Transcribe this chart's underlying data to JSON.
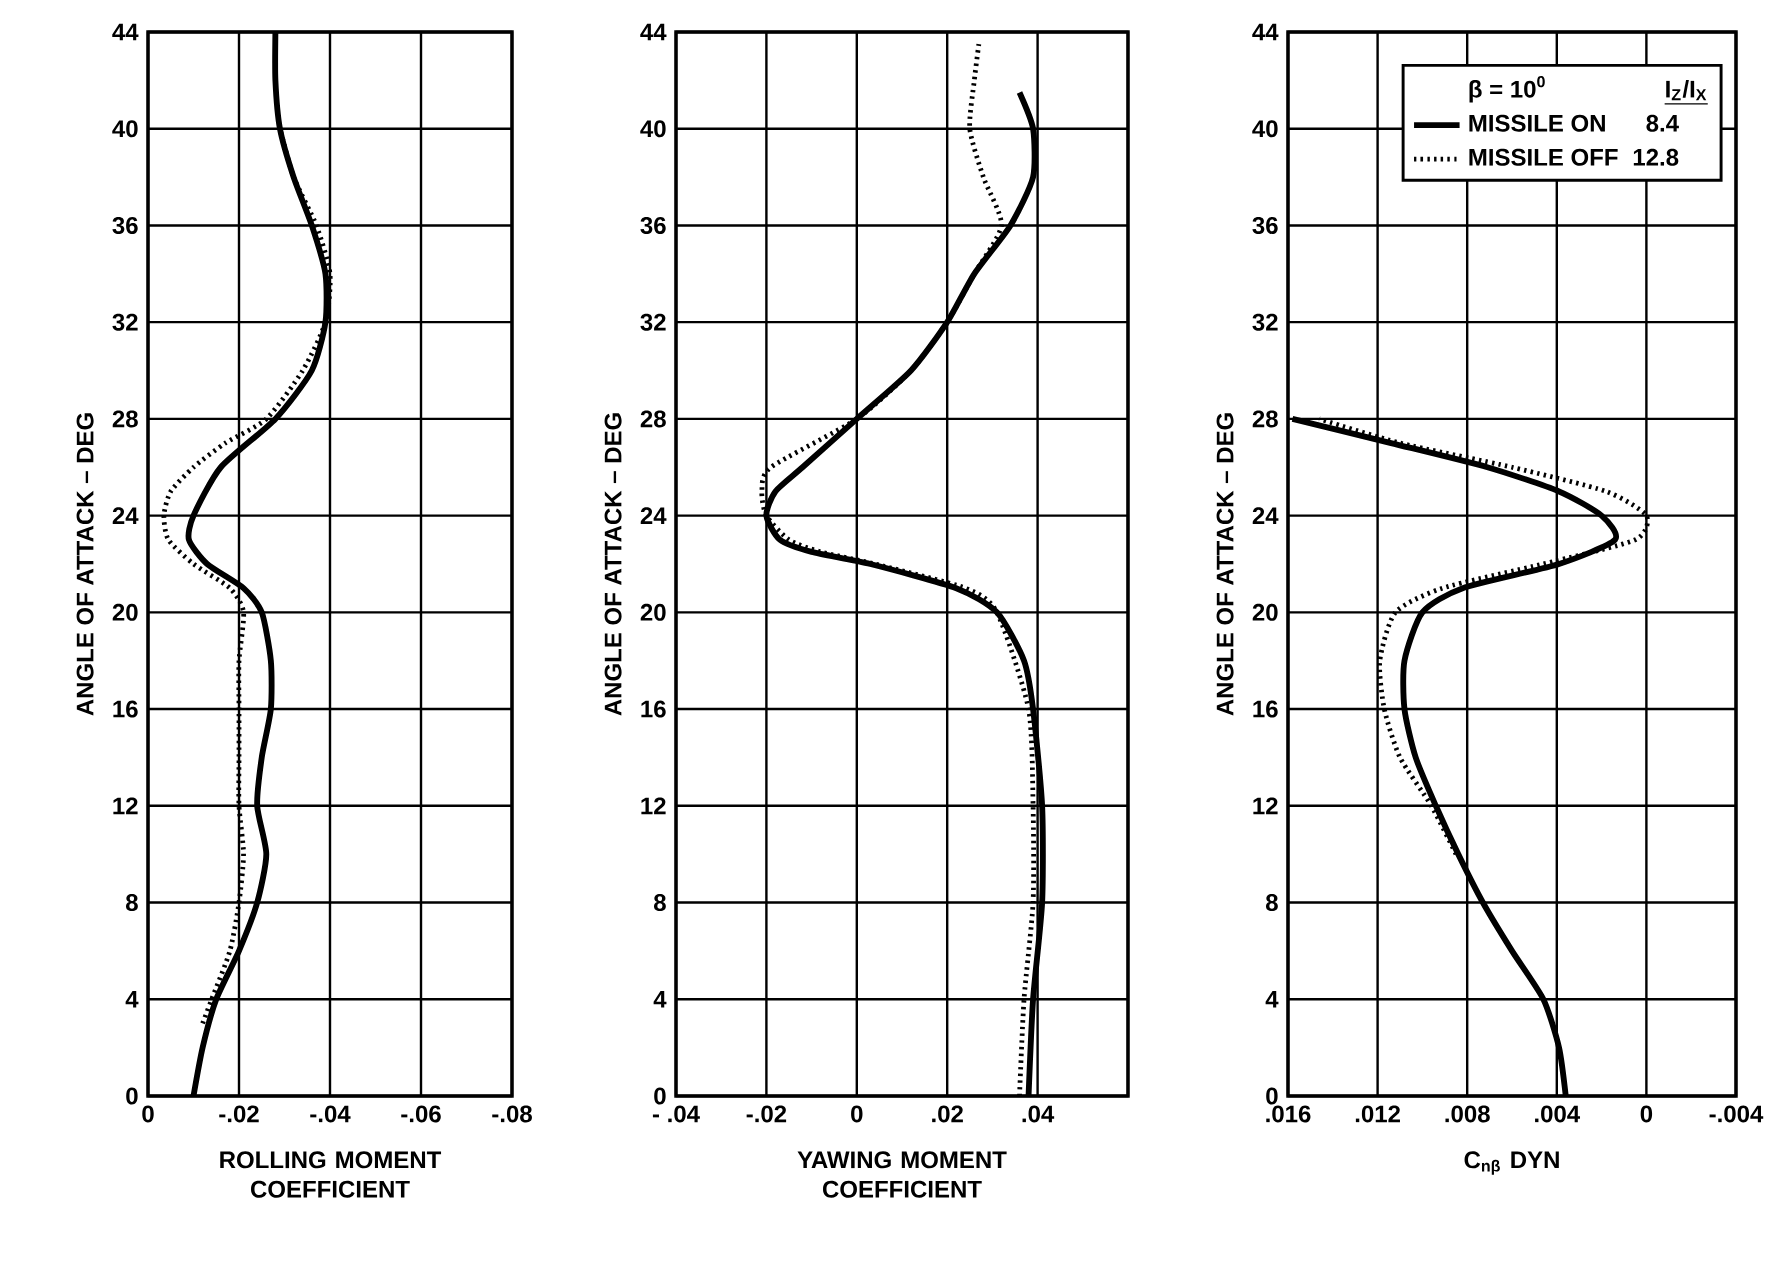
{
  "chart_data": [
    {
      "type": "line",
      "xlabel": "ROLLING MOMENT COEFFICIENT",
      "ylabel": "ANGLE OF ATTACK – DEG",
      "xlim": [
        0,
        -0.08
      ],
      "xticks": [
        0,
        {
          "value": -0.02,
          "label": "-.02"
        },
        {
          "value": -0.04,
          "label": "-.04"
        },
        {
          "value": -0.06,
          "label": "-.06"
        },
        {
          "value": -0.08,
          "label": "-.08"
        }
      ],
      "ylim": [
        0,
        44
      ],
      "yticks": [
        0,
        4,
        8,
        12,
        16,
        20,
        24,
        28,
        32,
        36,
        40,
        44
      ],
      "grid": true,
      "series": [
        {
          "color": "#000000",
          "line_style": "solid",
          "x": [
            -0.01,
            -0.012,
            -0.015,
            -0.02,
            -0.024,
            -0.026,
            -0.024,
            -0.025,
            -0.027,
            -0.027,
            -0.025,
            -0.021,
            -0.013,
            -0.009,
            -0.01,
            -0.016,
            -0.028,
            -0.036,
            -0.039,
            -0.039,
            -0.036,
            -0.032,
            -0.029,
            -0.028,
            -0.028
          ],
          "values": [
            0,
            2,
            4,
            6,
            8,
            10,
            12,
            14,
            16,
            18,
            20,
            21,
            22,
            23,
            24,
            26,
            28,
            30,
            32,
            34,
            36,
            38,
            40,
            42,
            44
          ]
        },
        {
          "color": "#000000",
          "line_style": "dotted",
          "x": [
            -0.012,
            -0.014,
            -0.018,
            -0.02,
            -0.021,
            -0.02,
            -0.02,
            -0.02,
            -0.02,
            -0.021,
            -0.018,
            -0.01,
            -0.0045,
            -0.0035,
            -0.005,
            -0.01,
            -0.017,
            -0.026,
            -0.034,
            -0.039,
            -0.04,
            -0.037,
            -0.032,
            -0.029
          ],
          "values": [
            3,
            4,
            6,
            8,
            10,
            12,
            14,
            16,
            18,
            20,
            21,
            22,
            23,
            24,
            25,
            26,
            27,
            28,
            30,
            32,
            34,
            36,
            38,
            40
          ]
        }
      ]
    },
    {
      "type": "line",
      "xlabel": "YAWING MOMENT COEFFICIENT",
      "ylabel": "ANGLE OF ATTACK – DEG",
      "xlim": [
        -0.04,
        0.06
      ],
      "xticks": [
        {
          "value": -0.04,
          "label": "- .04"
        },
        {
          "value": -0.02,
          "label": "-.02"
        },
        0,
        {
          "value": 0.02,
          "label": ".02"
        },
        {
          "value": 0.04,
          "label": ".04"
        },
        {
          "value": 0.06,
          "label": null
        }
      ],
      "ylim": [
        0,
        44
      ],
      "yticks": [
        0,
        4,
        8,
        12,
        16,
        20,
        24,
        28,
        32,
        36,
        40,
        44
      ],
      "grid": true,
      "series": [
        {
          "color": "#000000",
          "line_style": "solid",
          "x": [
            0.038,
            0.039,
            0.041,
            0.041,
            0.039,
            0.037,
            0.031,
            0.022,
            0.003,
            -0.01,
            -0.017,
            -0.02,
            -0.018,
            -0.012,
            0,
            0.012,
            0.02,
            0.026,
            0.034,
            0.039,
            0.039,
            0.036
          ],
          "values": [
            0,
            4,
            8,
            12,
            16,
            18,
            20,
            21,
            22,
            22.5,
            23,
            24,
            25,
            26,
            28,
            30,
            32,
            34,
            36,
            38,
            40,
            41.5
          ]
        },
        {
          "color": "#000000",
          "line_style": "dotted",
          "x": [
            0.036,
            0.037,
            0.039,
            0.039,
            0.038,
            0.031,
            0.024,
            0.004,
            -0.008,
            -0.015,
            -0.02,
            -0.021,
            -0.019,
            0,
            0.012,
            0.02,
            0.026,
            0.032,
            0.028,
            0.025,
            0.026,
            0.027
          ],
          "values": [
            0,
            4,
            8,
            12,
            16,
            20,
            21,
            22,
            22.5,
            23,
            24,
            25,
            26,
            28,
            30,
            32,
            34,
            36,
            38,
            40,
            42,
            43.5
          ]
        }
      ]
    },
    {
      "type": "line",
      "xlabel": "C$_{nβ}$ DYN",
      "ylabel": "ANGLE OF ATTACK – DEG",
      "xlim": [
        0.016,
        -0.004
      ],
      "xticks": [
        {
          "value": 0.016,
          "label": ".016"
        },
        {
          "value": 0.012,
          "label": ".012"
        },
        {
          "value": 0.008,
          "label": ".008"
        },
        {
          "value": 0.004,
          "label": ".004"
        },
        0,
        {
          "value": -0.004,
          "label": "-.004"
        }
      ],
      "ylim": [
        0,
        44
      ],
      "yticks": [
        0,
        4,
        8,
        12,
        16,
        20,
        24,
        28,
        32,
        36,
        40,
        44
      ],
      "grid": true,
      "legend": "top right",
      "legend_title": "β = 10$^{0}$",
      "annotations": [
        "I$_{Z}$/I$_{X}$",
        "8.4",
        "12.8"
      ],
      "series": [
        {
          "name": "MISSILE ON",
          "color": "#000000",
          "line_style": "solid",
          "x": [
            0.0036,
            0.0039,
            0.0046,
            0.006,
            0.0073,
            0.0084,
            0.0094,
            0.0103,
            0.0108,
            0.0108,
            0.01,
            0.0082,
            0.0039,
            0.0014,
            0.002,
            0.0039,
            0.0071,
            0.0114,
            0.0158
          ],
          "values": [
            0,
            2,
            4,
            6,
            8,
            10,
            12,
            14,
            16,
            18,
            20,
            21,
            22,
            23,
            24,
            25,
            26,
            27,
            28
          ]
        },
        {
          "name": "MISSILE OFF",
          "color": "#000000",
          "line_style": "dotted",
          "x": [
            0.0085,
            0.0096,
            0.011,
            0.0117,
            0.0119,
            0.0112,
            0.0091,
            0.0046,
            0.0005,
            0.0,
            0.0018,
            0.006,
            0.011,
            0.0146
          ],
          "values": [
            10,
            12,
            14,
            16,
            18,
            20,
            21,
            22,
            23,
            24,
            25,
            26,
            27,
            28
          ]
        }
      ]
    }
  ]
}
